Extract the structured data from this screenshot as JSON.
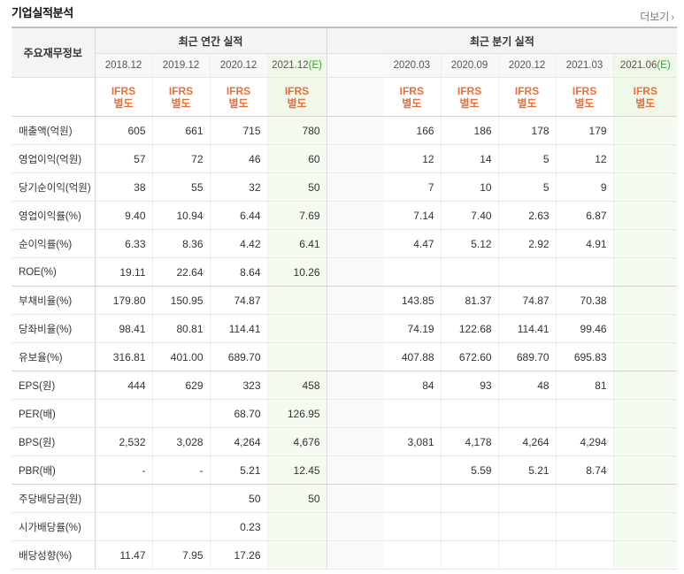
{
  "header": {
    "title": "기업실적분석",
    "more_label": "더보기"
  },
  "table": {
    "label_header": "주요재무정보",
    "annual_group": "최근 연간 실적",
    "quarterly_group": "최근 분기 실적",
    "annual_periods": [
      "2018.12",
      "2019.12",
      "2020.12",
      "2021.12"
    ],
    "annual_estimate_mark": "(E)",
    "quarter_periods": [
      "2020.03",
      "2020.09",
      "2020.12",
      "2021.03",
      "2021.06"
    ],
    "quarter_estimate_mark": "(E)",
    "ifrs_line1": "IFRS",
    "ifrs_line2": "별도",
    "rows": [
      {
        "label": "매출액(억원)",
        "annual": [
          "605",
          "661",
          "715",
          "780"
        ],
        "quarter": [
          "166",
          "186",
          "178",
          "179",
          ""
        ]
      },
      {
        "label": "영업이익(억원)",
        "annual": [
          "57",
          "72",
          "46",
          "60"
        ],
        "quarter": [
          "12",
          "14",
          "5",
          "12",
          ""
        ]
      },
      {
        "label": "당기순이익(억원)",
        "annual": [
          "38",
          "55",
          "32",
          "50"
        ],
        "quarter": [
          "7",
          "10",
          "5",
          "9",
          ""
        ]
      },
      {
        "label": "영업이익률(%)",
        "annual": [
          "9.40",
          "10.94",
          "6.44",
          "7.69"
        ],
        "quarter": [
          "7.14",
          "7.40",
          "2.63",
          "6.87",
          ""
        ]
      },
      {
        "label": "순이익률(%)",
        "annual": [
          "6.33",
          "8.36",
          "4.42",
          "6.41"
        ],
        "quarter": [
          "4.47",
          "5.12",
          "2.92",
          "4.91",
          ""
        ]
      },
      {
        "label": "ROE(%)",
        "annual": [
          "19.11",
          "22.64",
          "8.64",
          "10.26"
        ],
        "quarter": [
          "",
          "",
          "",
          "",
          ""
        ]
      },
      {
        "label": "부채비율(%)",
        "annual": [
          "179.80",
          "150.95",
          "74.87",
          ""
        ],
        "quarter": [
          "143.85",
          "81.37",
          "74.87",
          "70.38",
          ""
        ]
      },
      {
        "label": "당좌비율(%)",
        "annual": [
          "98.41",
          "80.81",
          "114.41",
          ""
        ],
        "quarter": [
          "74.19",
          "122.68",
          "114.41",
          "99.46",
          ""
        ]
      },
      {
        "label": "유보율(%)",
        "annual": [
          "316.81",
          "401.00",
          "689.70",
          ""
        ],
        "quarter": [
          "407.88",
          "672.60",
          "689.70",
          "695.83",
          ""
        ]
      },
      {
        "label": "EPS(원)",
        "annual": [
          "444",
          "629",
          "323",
          "458"
        ],
        "quarter": [
          "84",
          "93",
          "48",
          "81",
          ""
        ]
      },
      {
        "label": "PER(배)",
        "annual": [
          "",
          "",
          "68.70",
          "126.95"
        ],
        "quarter": [
          "",
          "",
          "",
          "",
          ""
        ]
      },
      {
        "label": "BPS(원)",
        "annual": [
          "2,532",
          "3,028",
          "4,264",
          "4,676"
        ],
        "quarter": [
          "3,081",
          "4,178",
          "4,264",
          "4,294",
          ""
        ]
      },
      {
        "label": "PBR(배)",
        "annual": [
          "-",
          "-",
          "5.21",
          "12.45"
        ],
        "quarter": [
          "",
          "5.59",
          "5.21",
          "8.74",
          ""
        ]
      },
      {
        "label": "주당배당금(원)",
        "annual": [
          "",
          "",
          "50",
          "50"
        ],
        "quarter": [
          "",
          "",
          "",
          "",
          ""
        ]
      },
      {
        "label": "시가배당률(%)",
        "annual": [
          "",
          "",
          "0.23",
          ""
        ],
        "quarter": [
          "",
          "",
          "",
          "",
          ""
        ]
      },
      {
        "label": "배당성향(%)",
        "annual": [
          "11.47",
          "7.95",
          "17.26",
          ""
        ],
        "quarter": [
          "",
          "",
          "",
          "",
          ""
        ]
      }
    ]
  },
  "colors": {
    "ifrs": "#e8703a",
    "estimate_bg": "#f4fbf0",
    "estimate_mark": "#3a9a38"
  }
}
